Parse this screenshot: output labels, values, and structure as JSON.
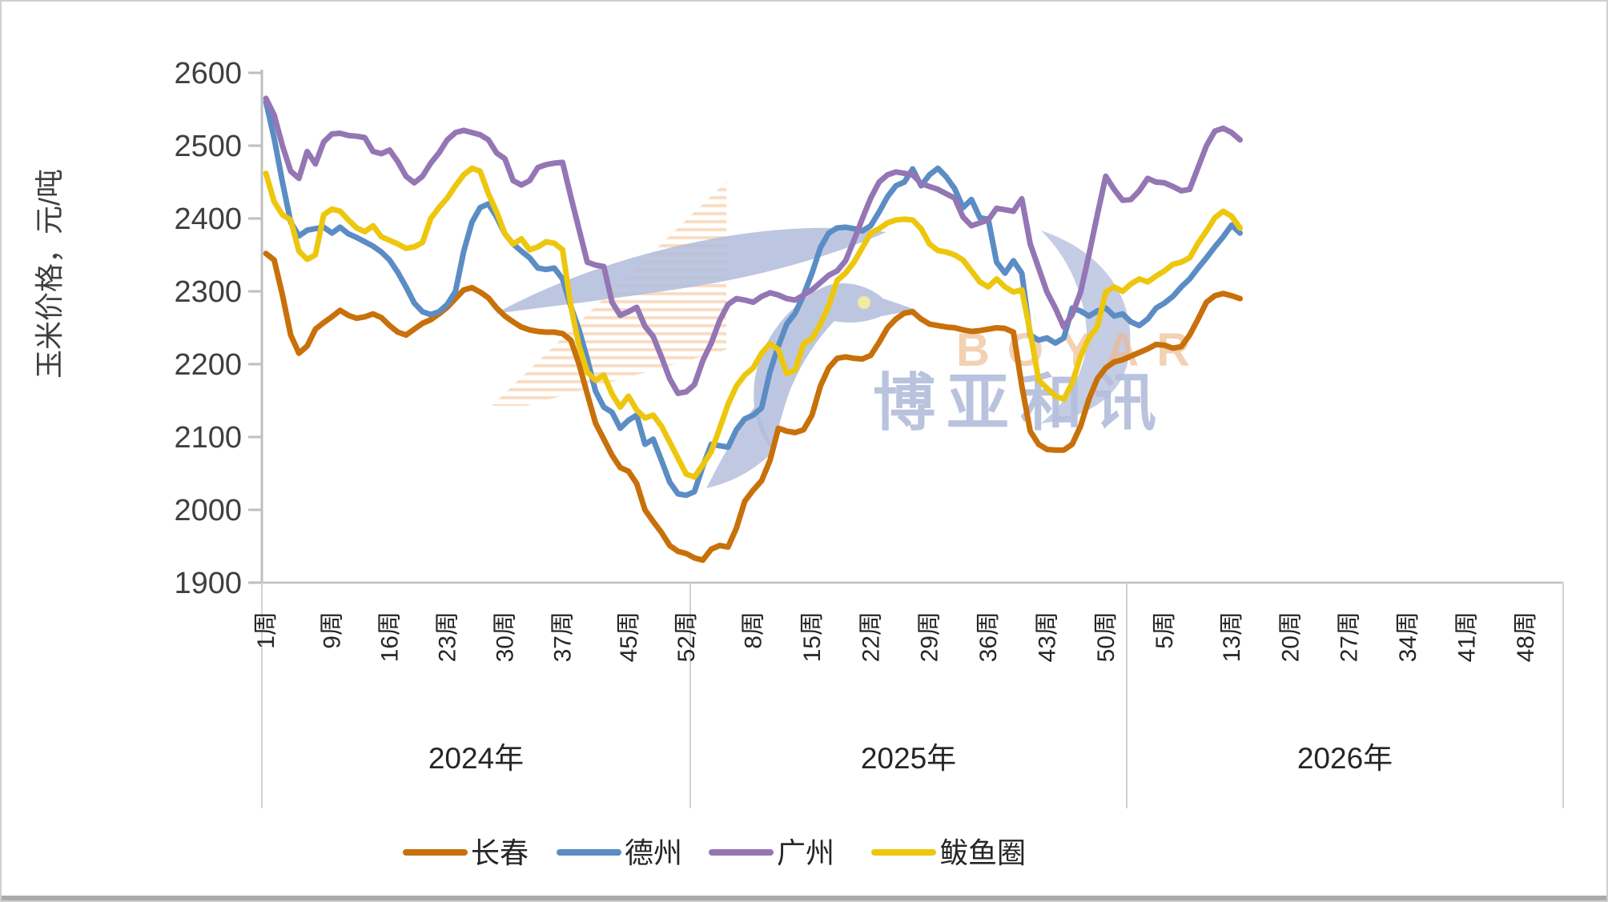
{
  "chart_data": {
    "type": "line",
    "ylabel": "玉米价格，元/吨",
    "ylim": [
      1900,
      2600
    ],
    "ytick_interval": 100,
    "ytick_labels": [
      "1900",
      "2000",
      "2100",
      "2200",
      "2300",
      "2400",
      "2500",
      "2600"
    ],
    "grid": false,
    "legend_position": "bottom",
    "x_axis": {
      "unit_suffix": "周",
      "year_groups": [
        {
          "label": "2024年",
          "weeks": 52,
          "tick_weeks": [
            1,
            9,
            16,
            23,
            30,
            37,
            45,
            52
          ]
        },
        {
          "label": "2025年",
          "weeks": 52,
          "tick_weeks": [
            8,
            15,
            22,
            29,
            36,
            43,
            50
          ]
        },
        {
          "label": "2026年",
          "weeks": 52,
          "tick_weeks": [
            5,
            13,
            20,
            27,
            34,
            41,
            48
          ]
        }
      ]
    },
    "series": [
      {
        "name": "长春",
        "color": "#C8700A",
        "values_2024": [
          2352,
          2343,
          2295,
          2240,
          2215,
          2225,
          2248,
          2257,
          2265,
          2274,
          2267,
          2263,
          2265,
          2269,
          2264,
          2253,
          2244,
          2240,
          2248,
          2256,
          2261,
          2269,
          2278,
          2290,
          2302,
          2305,
          2299,
          2291,
          2277,
          2266,
          2258,
          2251,
          2247,
          2245,
          2244,
          2244,
          2242,
          2233,
          2200,
          2159,
          2119,
          2097,
          2075,
          2058,
          2053,
          2036,
          2000,
          1984,
          1969,
          1951,
          1943,
          1940
        ],
        "values_2025": [
          1934,
          1931,
          1946,
          1951,
          1949,
          1975,
          2012,
          2027,
          2040,
          2068,
          2112,
          2108,
          2106,
          2110,
          2130,
          2170,
          2195,
          2208,
          2210,
          2208,
          2207,
          2212,
          2230,
          2250,
          2262,
          2270,
          2272,
          2262,
          2255,
          2253,
          2251,
          2250,
          2247,
          2245,
          2246,
          2248,
          2250,
          2249,
          2244,
          2170,
          2108,
          2090,
          2083,
          2082,
          2082,
          2090,
          2115,
          2152,
          2180,
          2195,
          2203,
          2206
        ],
        "values_2026": [
          2211,
          2216,
          2221,
          2227,
          2226,
          2222,
          2224,
          2240,
          2262,
          2285,
          2294,
          2297,
          2294,
          2290
        ]
      },
      {
        "name": "德州",
        "color": "#5B8DC4",
        "values_2024": [
          2560,
          2510,
          2450,
          2395,
          2376,
          2384,
          2386,
          2388,
          2380,
          2388,
          2379,
          2374,
          2368,
          2362,
          2354,
          2343,
          2326,
          2306,
          2284,
          2272,
          2268,
          2272,
          2282,
          2300,
          2355,
          2395,
          2415,
          2420,
          2402,
          2379,
          2365,
          2355,
          2346,
          2332,
          2330,
          2332,
          2317,
          2279,
          2247,
          2207,
          2163,
          2141,
          2134,
          2112,
          2123,
          2130,
          2090,
          2097,
          2068,
          2038,
          2022,
          2020
        ],
        "values_2025": [
          2025,
          2060,
          2090,
          2088,
          2086,
          2110,
          2125,
          2130,
          2140,
          2190,
          2225,
          2255,
          2270,
          2295,
          2325,
          2360,
          2380,
          2387,
          2388,
          2386,
          2383,
          2390,
          2409,
          2430,
          2445,
          2450,
          2468,
          2445,
          2460,
          2469,
          2457,
          2441,
          2415,
          2426,
          2401,
          2399,
          2340,
          2325,
          2342,
          2325,
          2240,
          2233,
          2236,
          2229,
          2236,
          2277,
          2273,
          2266,
          2273,
          2277,
          2266,
          2269
        ],
        "values_2026": [
          2258,
          2253,
          2262,
          2277,
          2284,
          2293,
          2306,
          2317,
          2332,
          2346,
          2361,
          2375,
          2391,
          2380
        ]
      },
      {
        "name": "广州",
        "color": "#9576B4",
        "values_2024": [
          2565,
          2542,
          2500,
          2465,
          2455,
          2492,
          2475,
          2505,
          2516,
          2517,
          2514,
          2513,
          2511,
          2492,
          2489,
          2494,
          2478,
          2458,
          2449,
          2458,
          2476,
          2490,
          2508,
          2518,
          2521,
          2518,
          2515,
          2508,
          2490,
          2482,
          2452,
          2446,
          2452,
          2470,
          2474,
          2476,
          2477,
          2430,
          2385,
          2340,
          2336,
          2334,
          2285,
          2267,
          2272,
          2278,
          2252,
          2238,
          2210,
          2180,
          2160,
          2162
        ],
        "values_2025": [
          2172,
          2205,
          2229,
          2260,
          2282,
          2290,
          2288,
          2285,
          2293,
          2298,
          2295,
          2290,
          2288,
          2295,
          2302,
          2312,
          2322,
          2328,
          2342,
          2370,
          2400,
          2428,
          2450,
          2460,
          2464,
          2462,
          2460,
          2448,
          2444,
          2440,
          2434,
          2428,
          2402,
          2390,
          2394,
          2398,
          2414,
          2412,
          2410,
          2427,
          2365,
          2332,
          2299,
          2277,
          2251,
          2268,
          2299,
          2350,
          2405,
          2458,
          2440,
          2425
        ],
        "values_2026": [
          2426,
          2438,
          2455,
          2450,
          2449,
          2444,
          2438,
          2440,
          2470,
          2500,
          2520,
          2524,
          2518,
          2508
        ]
      },
      {
        "name": "鲅鱼圈",
        "color": "#EDC70E",
        "values_2024": [
          2462,
          2423,
          2405,
          2398,
          2355,
          2344,
          2350,
          2405,
          2413,
          2410,
          2398,
          2387,
          2382,
          2390,
          2375,
          2370,
          2365,
          2359,
          2361,
          2367,
          2400,
          2415,
          2428,
          2445,
          2460,
          2469,
          2465,
          2434,
          2409,
          2379,
          2365,
          2372,
          2357,
          2361,
          2368,
          2366,
          2357,
          2280,
          2225,
          2189,
          2178,
          2185,
          2159,
          2141,
          2156,
          2137,
          2126,
          2130,
          2115,
          2093,
          2071,
          2049
        ],
        "values_2025": [
          2045,
          2062,
          2080,
          2112,
          2145,
          2170,
          2185,
          2195,
          2215,
          2228,
          2220,
          2187,
          2192,
          2228,
          2235,
          2255,
          2280,
          2315,
          2325,
          2340,
          2360,
          2380,
          2386,
          2394,
          2398,
          2399,
          2398,
          2386,
          2365,
          2356,
          2354,
          2350,
          2343,
          2328,
          2313,
          2306,
          2317,
          2306,
          2299,
          2302,
          2244,
          2178,
          2167,
          2156,
          2152,
          2174,
          2211,
          2236,
          2251,
          2299,
          2306,
          2300
        ],
        "values_2026": [
          2310,
          2317,
          2313,
          2321,
          2328,
          2337,
          2340,
          2346,
          2366,
          2383,
          2401,
          2410,
          2403,
          2387
        ]
      }
    ]
  },
  "legend": {
    "items": [
      {
        "label": "长春"
      },
      {
        "label": "德州"
      },
      {
        "label": "广州"
      },
      {
        "label": "鲅鱼圈"
      }
    ]
  },
  "watermark": {
    "cn_text": "博亚和讯",
    "en_text": "BOYAR",
    "bird_color": "#b2bcdb",
    "cn_color": "#b6c0dd",
    "en_color": "#eeb98c",
    "hatch_color": "#f5c79d",
    "eye_color": "#f0eca0"
  },
  "colors": {
    "axis": "#bfbfbf",
    "separator": "#d2d2d2",
    "tick_text": "#3f3f3f"
  }
}
